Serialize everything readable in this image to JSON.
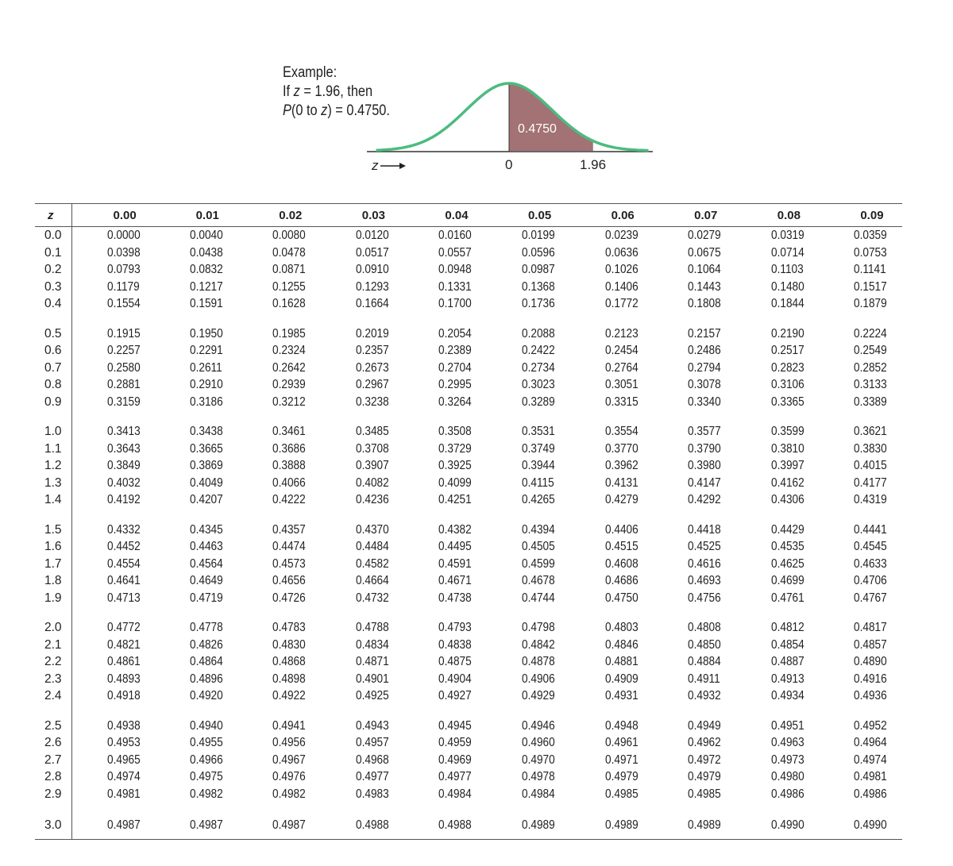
{
  "example": {
    "line1": "Example:",
    "line2_prefix": "If ",
    "line2_var": "z",
    "line2_suffix": " = 1.96, then",
    "line3_p": "P",
    "line3_mid": "(0 to ",
    "line3_var": "z",
    "line3_suffix": ") = 0.4750."
  },
  "figure": {
    "area_label": "0.4750",
    "axis_label": "z",
    "tick_zero": "0",
    "tick_z": "1.96",
    "curve_color": "#4cbb7f",
    "area_color": "#a37274",
    "z_value": 1.96
  },
  "table": {
    "z_header": "z",
    "columns": [
      "0.00",
      "0.01",
      "0.02",
      "0.03",
      "0.04",
      "0.05",
      "0.06",
      "0.07",
      "0.08",
      "0.09"
    ],
    "groups": [
      [
        {
          "z": "0.0",
          "v": [
            "0.0000",
            "0.0040",
            "0.0080",
            "0.0120",
            "0.0160",
            "0.0199",
            "0.0239",
            "0.0279",
            "0.0319",
            "0.0359"
          ]
        },
        {
          "z": "0.1",
          "v": [
            "0.0398",
            "0.0438",
            "0.0478",
            "0.0517",
            "0.0557",
            "0.0596",
            "0.0636",
            "0.0675",
            "0.0714",
            "0.0753"
          ]
        },
        {
          "z": "0.2",
          "v": [
            "0.0793",
            "0.0832",
            "0.0871",
            "0.0910",
            "0.0948",
            "0.0987",
            "0.1026",
            "0.1064",
            "0.1103",
            "0.1141"
          ]
        },
        {
          "z": "0.3",
          "v": [
            "0.1179",
            "0.1217",
            "0.1255",
            "0.1293",
            "0.1331",
            "0.1368",
            "0.1406",
            "0.1443",
            "0.1480",
            "0.1517"
          ]
        },
        {
          "z": "0.4",
          "v": [
            "0.1554",
            "0.1591",
            "0.1628",
            "0.1664",
            "0.1700",
            "0.1736",
            "0.1772",
            "0.1808",
            "0.1844",
            "0.1879"
          ]
        }
      ],
      [
        {
          "z": "0.5",
          "v": [
            "0.1915",
            "0.1950",
            "0.1985",
            "0.2019",
            "0.2054",
            "0.2088",
            "0.2123",
            "0.2157",
            "0.2190",
            "0.2224"
          ]
        },
        {
          "z": "0.6",
          "v": [
            "0.2257",
            "0.2291",
            "0.2324",
            "0.2357",
            "0.2389",
            "0.2422",
            "0.2454",
            "0.2486",
            "0.2517",
            "0.2549"
          ]
        },
        {
          "z": "0.7",
          "v": [
            "0.2580",
            "0.2611",
            "0.2642",
            "0.2673",
            "0.2704",
            "0.2734",
            "0.2764",
            "0.2794",
            "0.2823",
            "0.2852"
          ]
        },
        {
          "z": "0.8",
          "v": [
            "0.2881",
            "0.2910",
            "0.2939",
            "0.2967",
            "0.2995",
            "0.3023",
            "0.3051",
            "0.3078",
            "0.3106",
            "0.3133"
          ]
        },
        {
          "z": "0.9",
          "v": [
            "0.3159",
            "0.3186",
            "0.3212",
            "0.3238",
            "0.3264",
            "0.3289",
            "0.3315",
            "0.3340",
            "0.3365",
            "0.3389"
          ]
        }
      ],
      [
        {
          "z": "1.0",
          "v": [
            "0.3413",
            "0.3438",
            "0.3461",
            "0.3485",
            "0.3508",
            "0.3531",
            "0.3554",
            "0.3577",
            "0.3599",
            "0.3621"
          ]
        },
        {
          "z": "1.1",
          "v": [
            "0.3643",
            "0.3665",
            "0.3686",
            "0.3708",
            "0.3729",
            "0.3749",
            "0.3770",
            "0.3790",
            "0.3810",
            "0.3830"
          ]
        },
        {
          "z": "1.2",
          "v": [
            "0.3849",
            "0.3869",
            "0.3888",
            "0.3907",
            "0.3925",
            "0.3944",
            "0.3962",
            "0.3980",
            "0.3997",
            "0.4015"
          ]
        },
        {
          "z": "1.3",
          "v": [
            "0.4032",
            "0.4049",
            "0.4066",
            "0.4082",
            "0.4099",
            "0.4115",
            "0.4131",
            "0.4147",
            "0.4162",
            "0.4177"
          ]
        },
        {
          "z": "1.4",
          "v": [
            "0.4192",
            "0.4207",
            "0.4222",
            "0.4236",
            "0.4251",
            "0.4265",
            "0.4279",
            "0.4292",
            "0.4306",
            "0.4319"
          ]
        }
      ],
      [
        {
          "z": "1.5",
          "v": [
            "0.4332",
            "0.4345",
            "0.4357",
            "0.4370",
            "0.4382",
            "0.4394",
            "0.4406",
            "0.4418",
            "0.4429",
            "0.4441"
          ]
        },
        {
          "z": "1.6",
          "v": [
            "0.4452",
            "0.4463",
            "0.4474",
            "0.4484",
            "0.4495",
            "0.4505",
            "0.4515",
            "0.4525",
            "0.4535",
            "0.4545"
          ]
        },
        {
          "z": "1.7",
          "v": [
            "0.4554",
            "0.4564",
            "0.4573",
            "0.4582",
            "0.4591",
            "0.4599",
            "0.4608",
            "0.4616",
            "0.4625",
            "0.4633"
          ]
        },
        {
          "z": "1.8",
          "v": [
            "0.4641",
            "0.4649",
            "0.4656",
            "0.4664",
            "0.4671",
            "0.4678",
            "0.4686",
            "0.4693",
            "0.4699",
            "0.4706"
          ]
        },
        {
          "z": "1.9",
          "v": [
            "0.4713",
            "0.4719",
            "0.4726",
            "0.4732",
            "0.4738",
            "0.4744",
            "0.4750",
            "0.4756",
            "0.4761",
            "0.4767"
          ]
        }
      ],
      [
        {
          "z": "2.0",
          "v": [
            "0.4772",
            "0.4778",
            "0.4783",
            "0.4788",
            "0.4793",
            "0.4798",
            "0.4803",
            "0.4808",
            "0.4812",
            "0.4817"
          ]
        },
        {
          "z": "2.1",
          "v": [
            "0.4821",
            "0.4826",
            "0.4830",
            "0.4834",
            "0.4838",
            "0.4842",
            "0.4846",
            "0.4850",
            "0.4854",
            "0.4857"
          ]
        },
        {
          "z": "2.2",
          "v": [
            "0.4861",
            "0.4864",
            "0.4868",
            "0.4871",
            "0.4875",
            "0.4878",
            "0.4881",
            "0.4884",
            "0.4887",
            "0.4890"
          ]
        },
        {
          "z": "2.3",
          "v": [
            "0.4893",
            "0.4896",
            "0.4898",
            "0.4901",
            "0.4904",
            "0.4906",
            "0.4909",
            "0.4911",
            "0.4913",
            "0.4916"
          ]
        },
        {
          "z": "2.4",
          "v": [
            "0.4918",
            "0.4920",
            "0.4922",
            "0.4925",
            "0.4927",
            "0.4929",
            "0.4931",
            "0.4932",
            "0.4934",
            "0.4936"
          ]
        }
      ],
      [
        {
          "z": "2.5",
          "v": [
            "0.4938",
            "0.4940",
            "0.4941",
            "0.4943",
            "0.4945",
            "0.4946",
            "0.4948",
            "0.4949",
            "0.4951",
            "0.4952"
          ]
        },
        {
          "z": "2.6",
          "v": [
            "0.4953",
            "0.4955",
            "0.4956",
            "0.4957",
            "0.4959",
            "0.4960",
            "0.4961",
            "0.4962",
            "0.4963",
            "0.4964"
          ]
        },
        {
          "z": "2.7",
          "v": [
            "0.4965",
            "0.4966",
            "0.4967",
            "0.4968",
            "0.4969",
            "0.4970",
            "0.4971",
            "0.4972",
            "0.4973",
            "0.4974"
          ]
        },
        {
          "z": "2.8",
          "v": [
            "0.4974",
            "0.4975",
            "0.4976",
            "0.4977",
            "0.4977",
            "0.4978",
            "0.4979",
            "0.4979",
            "0.4980",
            "0.4981"
          ]
        },
        {
          "z": "2.9",
          "v": [
            "0.4981",
            "0.4982",
            "0.4982",
            "0.4983",
            "0.4984",
            "0.4984",
            "0.4985",
            "0.4985",
            "0.4986",
            "0.4986"
          ]
        }
      ],
      [
        {
          "z": "3.0",
          "v": [
            "0.4987",
            "0.4987",
            "0.4987",
            "0.4988",
            "0.4988",
            "0.4989",
            "0.4989",
            "0.4989",
            "0.4990",
            "0.4990"
          ]
        }
      ]
    ]
  }
}
